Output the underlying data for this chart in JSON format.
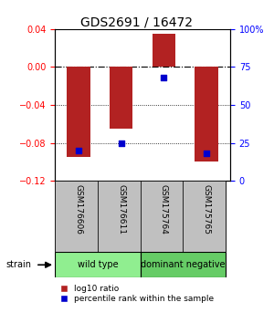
{
  "title": "GDS2691 / 16472",
  "samples": [
    "GSM176606",
    "GSM176611",
    "GSM175764",
    "GSM175765"
  ],
  "log10_ratio": [
    -0.095,
    -0.065,
    0.035,
    -0.1
  ],
  "percentile_rank": [
    20,
    25,
    68,
    18
  ],
  "ylim_left": [
    -0.12,
    0.04
  ],
  "ylim_right": [
    0,
    100
  ],
  "yticks_left": [
    0.04,
    0,
    -0.04,
    -0.08,
    -0.12
  ],
  "yticks_right_vals": [
    100,
    75,
    50,
    25,
    0
  ],
  "yticks_right_labels": [
    "100%",
    "75",
    "50",
    "25",
    "0"
  ],
  "bar_color": "#B22222",
  "dot_color": "#0000CD",
  "groups": [
    {
      "label": "wild type",
      "indices": [
        0,
        1
      ],
      "color": "#90EE90"
    },
    {
      "label": "dominant negative",
      "indices": [
        2,
        3
      ],
      "color": "#66CC66"
    }
  ],
  "strain_label": "strain",
  "legend_items": [
    {
      "label": "log10 ratio",
      "color": "#B22222"
    },
    {
      "label": "percentile rank within the sample",
      "color": "#0000CD"
    }
  ],
  "background_color": "#ffffff",
  "sample_box_color": "#C0C0C0"
}
